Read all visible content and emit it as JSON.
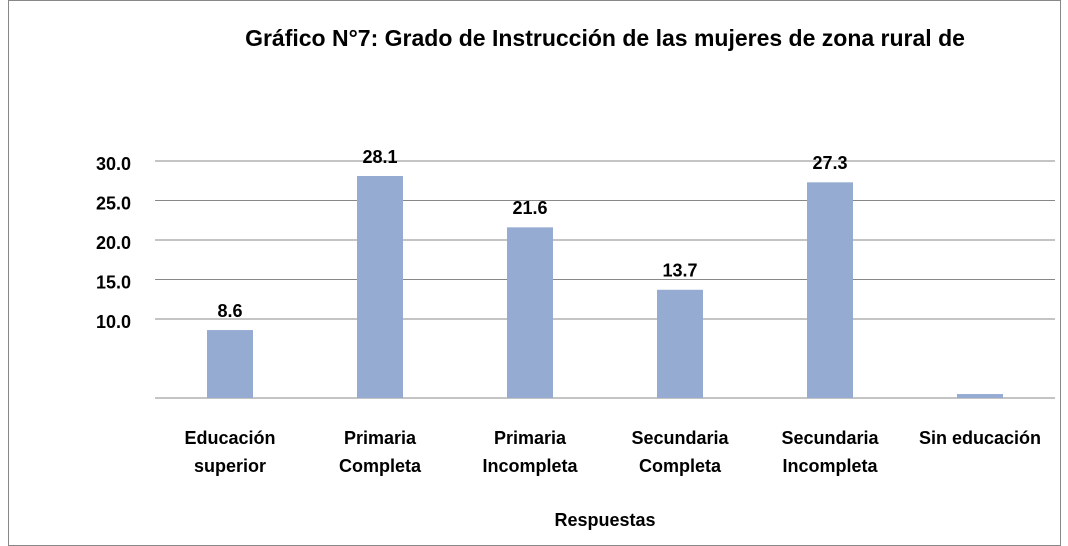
{
  "chart_data": {
    "type": "bar",
    "title": "Gráfico N°7: Grado de Instrucción de las mujeres de zona rural de",
    "x_label": "Respuestas",
    "categories": [
      "Educación superior",
      "Primaria Completa",
      "Primaria Incompleta",
      "Secundaria Completa",
      "Secundaria Incompleta",
      "Sin educación"
    ],
    "values": [
      8.6,
      28.1,
      21.6,
      13.7,
      27.3,
      0.5
    ],
    "value_labels": [
      "8.6",
      "28.1",
      "21.6",
      "13.7",
      "27.3",
      null
    ],
    "color": "#95abd1",
    "ylim": [
      0,
      30
    ],
    "yticks": [
      {
        "value": 10,
        "label": "10.0"
      },
      {
        "value": 15,
        "label": "15.0"
      },
      {
        "value": 20,
        "label": "20.0"
      },
      {
        "value": 25,
        "label": "25.0"
      },
      {
        "value": 30,
        "label": "30.0"
      }
    ],
    "grid": true
  }
}
